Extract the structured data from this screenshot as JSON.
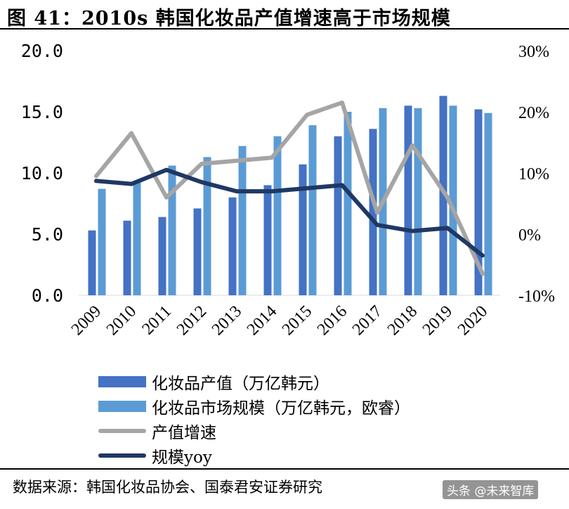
{
  "title": "图 41：2010s 韩国化妆品产值增速高于市场规模",
  "source": "数据来源：韩国化妆品协会、国泰君安证券研究",
  "watermark": "头条 @未来智库",
  "colors": {
    "production": "#4472C4",
    "market": "#5B9BD5",
    "growth": "#A5A5A5",
    "yoy": "#1F3864"
  },
  "chart_data": {
    "type": "bar",
    "categories": [
      "2009",
      "2010",
      "2011",
      "2012",
      "2013",
      "2014",
      "2015",
      "2016",
      "2017",
      "2018",
      "2019",
      "2020"
    ],
    "y_left": {
      "lim": [
        0,
        20
      ],
      "ticks": [
        "0.0",
        "5.0",
        "10.0",
        "15.0",
        "20.0"
      ]
    },
    "y_right": {
      "lim": [
        -10,
        30
      ],
      "ticks": [
        "-10%",
        "0%",
        "10%",
        "20%",
        "30%"
      ]
    },
    "series": [
      {
        "name": "化妆品产值（万亿韩元）",
        "type": "bar",
        "axis": "left",
        "values": [
          5.3,
          6.1,
          6.4,
          7.1,
          8.0,
          9.0,
          10.7,
          13.0,
          13.6,
          15.5,
          16.3,
          15.2
        ]
      },
      {
        "name": "化妆品市场规模（万亿韩元，欧睿）",
        "type": "bar",
        "axis": "left",
        "values": [
          8.7,
          9.3,
          10.6,
          11.3,
          12.2,
          13.0,
          13.9,
          15.0,
          15.3,
          15.3,
          15.5,
          14.9
        ]
      },
      {
        "name": "产值增速",
        "type": "line",
        "axis": "right",
        "values": [
          9.5,
          16.5,
          6.0,
          11.5,
          12.0,
          12.5,
          19.5,
          21.5,
          3.5,
          14.5,
          6.0,
          -6.5
        ]
      },
      {
        "name": "规模yoy",
        "type": "line",
        "axis": "right",
        "values": [
          8.7,
          8.2,
          10.5,
          8.5,
          7.0,
          7.0,
          7.5,
          8.0,
          1.5,
          0.5,
          1.0,
          -3.5
        ]
      }
    ]
  }
}
